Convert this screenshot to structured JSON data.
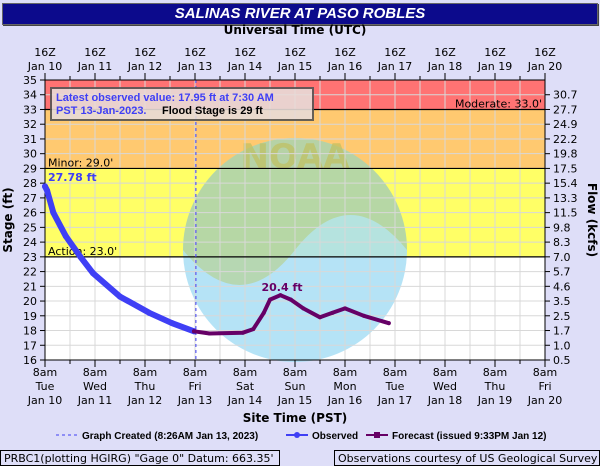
{
  "title": "SALINAS RIVER AT PASO ROBLES",
  "top_axis_title": "Universal Time (UTC)",
  "top_ticks": [
    {
      "l1": "16Z",
      "l2": "Jan 10"
    },
    {
      "l1": "16Z",
      "l2": "Jan 11"
    },
    {
      "l1": "16Z",
      "l2": "Jan 12"
    },
    {
      "l1": "16Z",
      "l2": "Jan 13"
    },
    {
      "l1": "16Z",
      "l2": "Jan 14"
    },
    {
      "l1": "16Z",
      "l2": "Jan 15"
    },
    {
      "l1": "16Z",
      "l2": "Jan 16"
    },
    {
      "l1": "16Z",
      "l2": "Jan 17"
    },
    {
      "l1": "16Z",
      "l2": "Jan 18"
    },
    {
      "l1": "16Z",
      "l2": "Jan 19"
    },
    {
      "l1": "16Z",
      "l2": "Jan 20"
    }
  ],
  "bottom_axis_title": "Site Time (PST)",
  "bottom_ticks": [
    {
      "l1": "8am",
      "l2": "Tue",
      "l3": "Jan 10"
    },
    {
      "l1": "8am",
      "l2": "Wed",
      "l3": "Jan 11"
    },
    {
      "l1": "8am",
      "l2": "Thu",
      "l3": "Jan 12"
    },
    {
      "l1": "8am",
      "l2": "Fri",
      "l3": "Jan 13"
    },
    {
      "l1": "8am",
      "l2": "Sat",
      "l3": "Jan 14"
    },
    {
      "l1": "8am",
      "l2": "Sun",
      "l3": "Jan 15"
    },
    {
      "l1": "8am",
      "l2": "Mon",
      "l3": "Jan 16"
    },
    {
      "l1": "8am",
      "l2": "Tue",
      "l3": "Jan 17"
    },
    {
      "l1": "8am",
      "l2": "Wed",
      "l3": "Jan 18"
    },
    {
      "l1": "8am",
      "l2": "Thu",
      "l3": "Jan 19"
    },
    {
      "l1": "8am",
      "l2": "Fri",
      "l3": "Jan 20"
    }
  ],
  "chart_data": {
    "type": "line",
    "ylabel": "Stage (ft)",
    "y2label": "Flow (kcfs)",
    "xlim": [
      "2023-01-10T08:00",
      "2023-01-20T08:00"
    ],
    "ylim": [
      16,
      35
    ],
    "grid": true,
    "y_ticks": [
      16,
      17,
      18,
      19,
      20,
      21,
      22,
      23,
      24,
      25,
      26,
      27,
      28,
      29,
      30,
      31,
      32,
      33,
      34,
      35
    ],
    "y2_ticks": [
      {
        "stage": 34,
        "flow": "30.7"
      },
      {
        "stage": 33,
        "flow": "27.7"
      },
      {
        "stage": 32,
        "flow": "24.9"
      },
      {
        "stage": 31,
        "flow": "22.2"
      },
      {
        "stage": 30,
        "flow": "19.8"
      },
      {
        "stage": 29,
        "flow": "17.5"
      },
      {
        "stage": 28,
        "flow": "15.4"
      },
      {
        "stage": 27,
        "flow": "13.3"
      },
      {
        "stage": 26,
        "flow": "11.5"
      },
      {
        "stage": 25,
        "flow": "9.8"
      },
      {
        "stage": 24,
        "flow": "8.3"
      },
      {
        "stage": 23,
        "flow": "7.0"
      },
      {
        "stage": 22,
        "flow": "5.7"
      },
      {
        "stage": 21,
        "flow": "4.6"
      },
      {
        "stage": 20,
        "flow": "3.5"
      },
      {
        "stage": 19,
        "flow": "2.5"
      },
      {
        "stage": 18,
        "flow": "1.7"
      },
      {
        "stage": 17,
        "flow": "1.0"
      },
      {
        "stage": 16,
        "flow": "0.5"
      }
    ],
    "flood_bands": [
      {
        "from": 33,
        "to": 35,
        "color": "#ff7373"
      },
      {
        "from": 29,
        "to": 33,
        "color": "#ffc970"
      },
      {
        "from": 23,
        "to": 29,
        "color": "#ffff66"
      },
      {
        "from": 16,
        "to": 23,
        "color": "#ffffff"
      }
    ],
    "thresholds": [
      {
        "label": "Moderate: 33.0'",
        "value": 33
      },
      {
        "label": "Minor: 29.0'",
        "value": 29
      },
      {
        "label": "Action: 23.0'",
        "value": 23
      }
    ],
    "graph_created": "2023-01-13T08:26",
    "series": [
      {
        "name": "Observed",
        "color": "#3f3ff5",
        "points": [
          [
            "2023-01-10T08:00",
            27.78
          ],
          [
            "2023-01-10T09:00",
            27.5
          ],
          [
            "2023-01-10T12:00",
            26.0
          ],
          [
            "2023-01-10T18:00",
            24.4
          ],
          [
            "2023-01-11T01:00",
            23.0
          ],
          [
            "2023-01-11T07:00",
            21.9
          ],
          [
            "2023-01-11T20:00",
            20.3
          ],
          [
            "2023-01-12T10:00",
            19.2
          ],
          [
            "2023-01-12T21:00",
            18.5
          ],
          [
            "2023-01-13T07:30",
            17.95
          ]
        ]
      },
      {
        "name": "Forecast (issued 9:33PM Jan 12)",
        "color": "#660066",
        "points": [
          [
            "2023-01-13T07:30",
            17.95
          ],
          [
            "2023-01-13T15:00",
            17.8
          ],
          [
            "2023-01-14T07:00",
            17.85
          ],
          [
            "2023-01-14T12:00",
            18.1
          ],
          [
            "2023-01-14T17:00",
            19.2
          ],
          [
            "2023-01-14T20:00",
            20.1
          ],
          [
            "2023-01-15T01:00",
            20.4
          ],
          [
            "2023-01-15T06:00",
            20.1
          ],
          [
            "2023-01-15T12:00",
            19.5
          ],
          [
            "2023-01-15T20:00",
            18.9
          ],
          [
            "2023-01-16T02:00",
            19.2
          ],
          [
            "2023-01-16T08:00",
            19.5
          ],
          [
            "2023-01-16T17:00",
            19.0
          ],
          [
            "2023-01-17T05:00",
            18.5
          ]
        ]
      }
    ],
    "annotations": {
      "first_obs": "27.78 ft",
      "crest": "20.4 ft"
    }
  },
  "info_box": {
    "line1": "Latest observed value: 17.95 ft at 7:30 AM",
    "line2a": "PST 13-Jan-2023.",
    "line2b": "Flood Stage is 29 ft"
  },
  "legend": {
    "created": "Graph Created (8:26AM Jan 13, 2023)",
    "observed": "Observed",
    "forecast": "Forecast (issued 9:33PM Jan 12)"
  },
  "footer": {
    "left": "PRBC1(plotting HGIRG) \"Gage 0\" Datum: 663.35'",
    "right": "Observations courtesy of US Geological Survey"
  }
}
